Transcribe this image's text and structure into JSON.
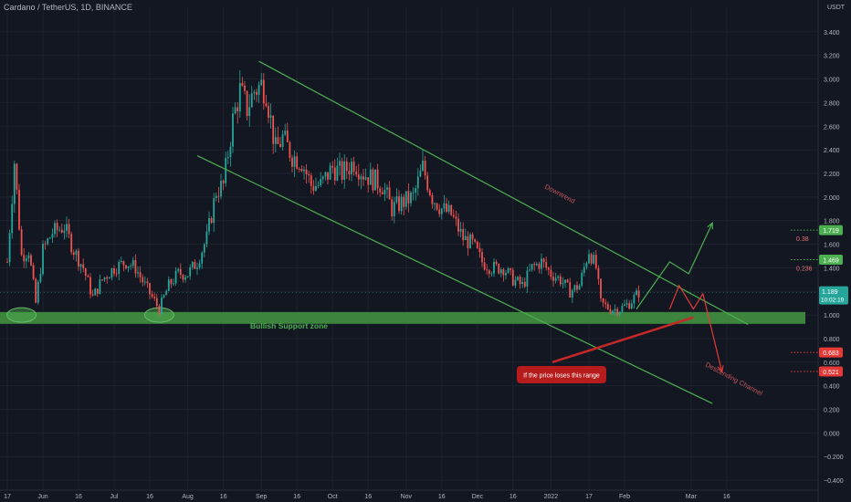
{
  "header": {
    "title": "Cardano / TetherUS, 1D, BINANCE",
    "currency": "USDT"
  },
  "colors": {
    "background": "#131722",
    "up": "#26a69a",
    "down": "#ef5350",
    "channel": "#4caf50",
    "support_zone": "#3f8a3f",
    "projection_up": "#4caf50",
    "projection_down": "#e53935",
    "callout": "#b71c1c"
  },
  "chart_data": {
    "type": "candlestick",
    "title": "Cardano / TetherUS, 1D, BINANCE",
    "ylabel": "USDT",
    "ylim": [
      -0.5,
      3.6
    ],
    "y_ticks": [
      "3.400",
      "3.200",
      "3.000",
      "2.800",
      "2.600",
      "2.400",
      "2.200",
      "2.000",
      "1.800",
      "1.600",
      "1.400",
      "1.200",
      "1.000",
      "0.800",
      "0.600",
      "0.400",
      "0.200",
      "0.000",
      "−0.200",
      "−0.400"
    ],
    "x_ticks": [
      "17",
      "Jun",
      "16",
      "Jul",
      "16",
      "Aug",
      "16",
      "Sep",
      "16",
      "Oct",
      "16",
      "Nov",
      "16",
      "Dec",
      "16",
      "2022",
      "17",
      "Feb",
      "Mar",
      "16"
    ],
    "last_price": {
      "value": "1.189",
      "countdown": "10:02:19"
    },
    "price_levels": [
      {
        "value": "1.719",
        "fib": "0.38",
        "color": "#4caf50"
      },
      {
        "value": "1.469",
        "fib": "0.236",
        "color": "#4caf50"
      },
      {
        "value": "0.683",
        "fib": "",
        "color": "#e53935"
      },
      {
        "value": "0.521",
        "fib": "",
        "color": "#e53935"
      }
    ],
    "close_path": [
      [
        "May 17",
        1.45
      ],
      [
        "May 20",
        2.3
      ],
      [
        "May 23",
        1.5
      ],
      [
        "May 26",
        1.55
      ],
      [
        "May 29",
        1.1
      ],
      [
        "Jun 1",
        1.55
      ],
      [
        "Jun 5",
        1.7
      ],
      [
        "Jun 10",
        1.75
      ],
      [
        "Jun 14",
        1.55
      ],
      [
        "Jun 18",
        1.4
      ],
      [
        "Jun 22",
        1.15
      ],
      [
        "Jun 26",
        1.3
      ],
      [
        "Jul 1",
        1.4
      ],
      [
        "Jul 6",
        1.45
      ],
      [
        "Jul 10",
        1.4
      ],
      [
        "Jul 14",
        1.25
      ],
      [
        "Jul 20",
        1.05
      ],
      [
        "Jul 24",
        1.25
      ],
      [
        "Jul 28",
        1.35
      ],
      [
        "Aug 1",
        1.35
      ],
      [
        "Aug 5",
        1.45
      ],
      [
        "Aug 9",
        1.65
      ],
      [
        "Aug 13",
        2.05
      ],
      [
        "Aug 16",
        2.1
      ],
      [
        "Aug 20",
        2.65
      ],
      [
        "Aug 23",
        2.9
      ],
      [
        "Aug 26",
        2.75
      ],
      [
        "Aug 29",
        2.9
      ],
      [
        "Sep 1",
        2.95
      ],
      [
        "Sep 3",
        2.9
      ],
      [
        "Sep 7",
        2.4
      ],
      [
        "Sep 10",
        2.5
      ],
      [
        "Sep 14",
        2.35
      ],
      [
        "Sep 18",
        2.3
      ],
      [
        "Sep 22",
        2.1
      ],
      [
        "Sep 26",
        2.1
      ],
      [
        "Oct 1",
        2.25
      ],
      [
        "Oct 5",
        2.2
      ],
      [
        "Oct 10",
        2.3
      ],
      [
        "Oct 14",
        2.2
      ],
      [
        "Oct 18",
        2.15
      ],
      [
        "Oct 22",
        2.1
      ],
      [
        "Oct 26",
        1.9
      ],
      [
        "Oct 30",
        1.95
      ],
      [
        "Nov 4",
        2.0
      ],
      [
        "Nov 8",
        2.25
      ],
      [
        "Nov 12",
        2.0
      ],
      [
        "Nov 16",
        1.9
      ],
      [
        "Nov 20",
        1.85
      ],
      [
        "Nov 25",
        1.65
      ],
      [
        "Nov 29",
        1.6
      ],
      [
        "Dec 3",
        1.45
      ],
      [
        "Dec 7",
        1.4
      ],
      [
        "Dec 12",
        1.4
      ],
      [
        "Dec 16",
        1.3
      ],
      [
        "Dec 20",
        1.25
      ],
      [
        "Dec 24",
        1.4
      ],
      [
        "Dec 28",
        1.45
      ],
      [
        "Jan 1",
        1.35
      ],
      [
        "Jan 5",
        1.3
      ],
      [
        "Jan 9",
        1.2
      ],
      [
        "Jan 13",
        1.25
      ],
      [
        "Jan 17",
        1.55
      ],
      [
        "Jan 20",
        1.4
      ],
      [
        "Jan 22",
        1.1
      ],
      [
        "Jan 26",
        1.05
      ],
      [
        "Jan 30",
        1.05
      ],
      [
        "Feb 3",
        1.1
      ],
      [
        "Feb 7",
        1.19
      ]
    ],
    "channel": [
      {
        "name": "Downtrend",
        "from": [
          "Aug 31",
          3.15
        ],
        "to": [
          "Mar 25",
          0.92
        ]
      },
      {
        "name": "Descending Channel",
        "from": [
          "Aug 5",
          2.35
        ],
        "to": [
          "Mar 10",
          0.25
        ]
      }
    ],
    "zones": [
      {
        "name": "Bullish Support zone",
        "from": 1.025,
        "to": 0.925
      }
    ],
    "projections": {
      "bullish": [
        [
          "Feb 6",
          1.05
        ],
        [
          "Feb 20",
          1.45
        ],
        [
          "Feb 28",
          1.35
        ],
        [
          "Mar 10",
          1.78
        ]
      ],
      "bearish": [
        [
          "Feb 20",
          1.05
        ],
        [
          "Feb 24",
          1.25
        ],
        [
          "Mar 2",
          1.05
        ],
        [
          "Mar 6",
          1.18
        ],
        [
          "Mar 14",
          0.52
        ]
      ]
    },
    "annotations": [
      "Downtrend",
      "Bullish Support zone",
      "Descending Channel",
      "If the price loses this range"
    ]
  }
}
